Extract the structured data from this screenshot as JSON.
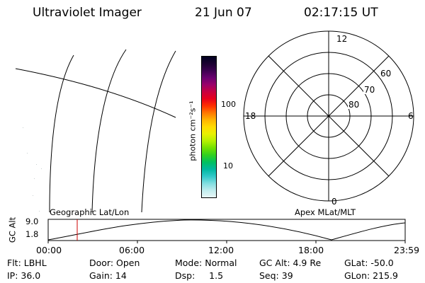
{
  "header": {
    "title": "Ultraviolet Imager",
    "date": "21 Jun 07",
    "time": "02:17:15 UT"
  },
  "colorbar": {
    "label": "photon cm⁻²s⁻¹",
    "ticks": [
      "100",
      "10"
    ],
    "colors": [
      "#000020",
      "#1a0030",
      "#3c0050",
      "#6a0070",
      "#9a006a",
      "#c80040",
      "#e8001c",
      "#ff3000",
      "#ff7800",
      "#ffb400",
      "#ffdc00",
      "#e8f000",
      "#b4f000",
      "#70e000",
      "#30d020",
      "#00c060",
      "#00b8a0",
      "#30c8c8",
      "#80dde0",
      "#c0ecee",
      "#e8f6f6"
    ]
  },
  "polar": {
    "mlt_labels": {
      "top": "12",
      "right": "6",
      "bottom": "0",
      "left": "18"
    },
    "lat_labels": [
      "60",
      "70",
      "80"
    ]
  },
  "timeline": {
    "left_label": "Geographic Lat/Lon",
    "right_label": "Apex MLat/MLT",
    "ylabel": "GC Alt",
    "yticks": [
      "9.0",
      "1.8"
    ],
    "xticks": [
      "00:00",
      "06:00",
      "12:00",
      "18:00",
      "23:59"
    ],
    "cursor_color": "#cc0000"
  },
  "info": {
    "row1": {
      "flt": "Flt: LBHL",
      "door": "Door: Open",
      "mode": "Mode: Normal",
      "gcalt": "GC Alt: 4.9 Re",
      "glat": "GLat: -50.0"
    },
    "row2": {
      "ip": "IP: 36.0",
      "gain": "Gain: 14",
      "dsp": "Dsp:     1.5",
      "seq": "Seq: 39",
      "glon": "GLon: 215.9"
    }
  }
}
